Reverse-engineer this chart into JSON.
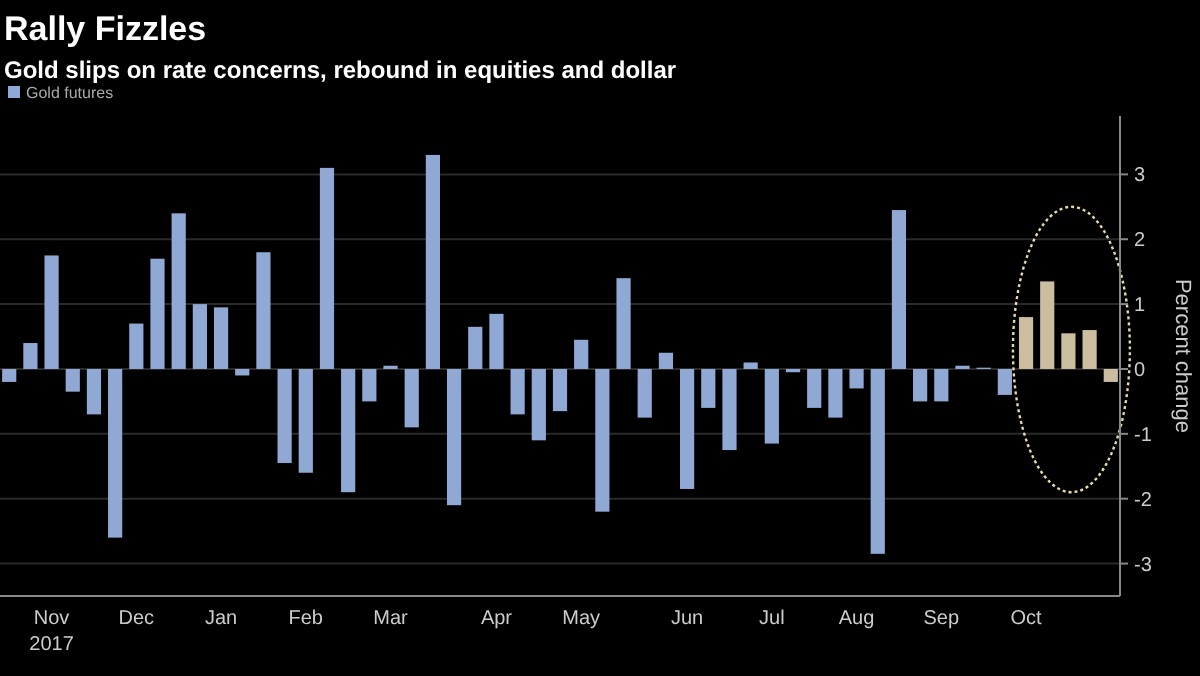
{
  "chart_data": {
    "type": "bar",
    "title": "Rally Fizzles",
    "subtitle": "Gold slips on rate concerns, rebound in equities and dollar",
    "ylabel": "Percent change",
    "categories": [
      null,
      null,
      "Nov",
      null,
      null,
      null,
      "Dec",
      null,
      null,
      null,
      "Jan",
      null,
      null,
      null,
      "Feb",
      null,
      null,
      null,
      "Mar",
      null,
      null,
      null,
      null,
      "Apr",
      null,
      null,
      null,
      "May",
      null,
      null,
      null,
      null,
      "Jun",
      null,
      null,
      null,
      "Jul",
      null,
      null,
      null,
      "Aug",
      null,
      null,
      null,
      "Sep",
      null,
      null,
      null,
      "Oct",
      null,
      null,
      null,
      null
    ],
    "series": [
      {
        "name": "Gold futures",
        "color": "#8fa8d4",
        "values": [
          -0.2,
          0.4,
          1.75,
          -0.35,
          -0.7,
          -2.6,
          0.7,
          1.7,
          2.4,
          1.0,
          0.95,
          -0.1,
          1.8,
          -1.45,
          -1.6,
          3.1,
          -1.9,
          -0.5,
          0.05,
          -0.9,
          3.3,
          -2.1,
          0.65,
          0.85,
          -0.7,
          -1.1,
          -0.65,
          0.45,
          -2.2,
          1.4,
          -0.75,
          0.25,
          -1.85,
          -0.6,
          -1.25,
          0.1,
          -1.15,
          -0.05,
          -0.6,
          -0.75,
          -0.3,
          -2.85,
          2.45,
          -0.5,
          -0.5,
          0.05,
          0.02,
          -0.4,
          0.8,
          1.35,
          0.55,
          0.6,
          -0.2
        ],
        "colors": [
          "#8fa8d4",
          "#8fa8d4",
          "#8fa8d4",
          "#8fa8d4",
          "#8fa8d4",
          "#8fa8d4",
          "#8fa8d4",
          "#8fa8d4",
          "#8fa8d4",
          "#8fa8d4",
          "#8fa8d4",
          "#8fa8d4",
          "#8fa8d4",
          "#8fa8d4",
          "#8fa8d4",
          "#8fa8d4",
          "#8fa8d4",
          "#8fa8d4",
          "#8fa8d4",
          "#8fa8d4",
          "#8fa8d4",
          "#8fa8d4",
          "#8fa8d4",
          "#8fa8d4",
          "#8fa8d4",
          "#8fa8d4",
          "#8fa8d4",
          "#8fa8d4",
          "#8fa8d4",
          "#8fa8d4",
          "#8fa8d4",
          "#8fa8d4",
          "#8fa8d4",
          "#8fa8d4",
          "#8fa8d4",
          "#8fa8d4",
          "#8fa8d4",
          "#8fa8d4",
          "#8fa8d4",
          "#8fa8d4",
          "#8fa8d4",
          "#8fa8d4",
          "#8fa8d4",
          "#8fa8d4",
          "#8fa8d4",
          "#8fa8d4",
          "#8fa8d4",
          "#8fa8d4",
          "#cbbd9f",
          "#cbbd9f",
          "#cbbd9f",
          "#cbbd9f",
          "#cbbd9f"
        ]
      }
    ],
    "annotations": [
      "2017"
    ],
    "ylim": [
      -3.5,
      3.9
    ],
    "yticks": [
      -3,
      -2,
      -1,
      0,
      1,
      2,
      3
    ],
    "grid": "y",
    "legend": "top left"
  }
}
